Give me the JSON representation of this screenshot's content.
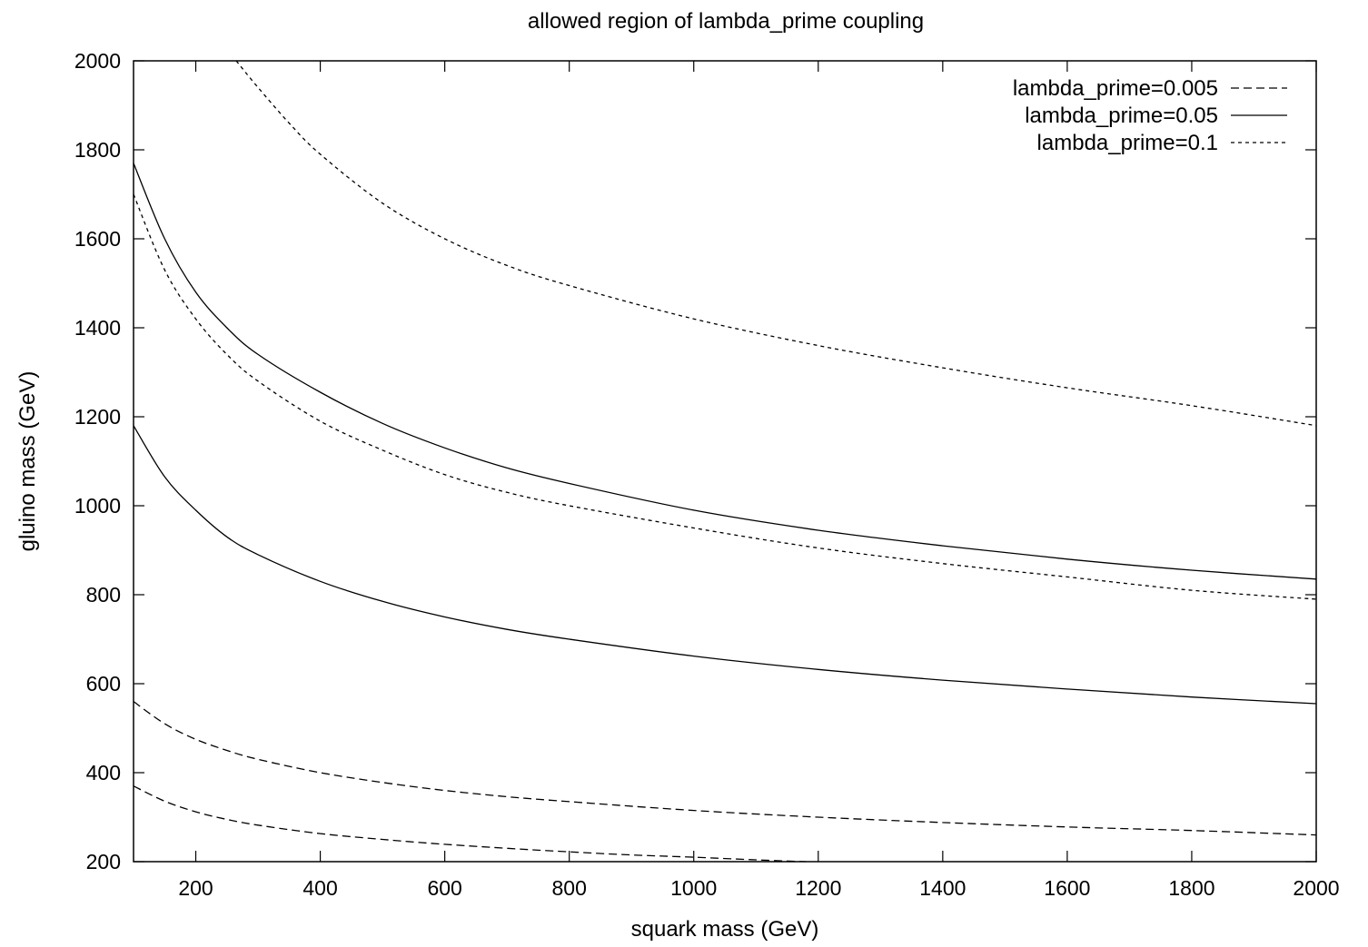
{
  "chart_data": {
    "type": "line",
    "title": "allowed region of lambda_prime coupling",
    "xlabel": "squark mass (GeV)",
    "ylabel": "gluino mass (GeV)",
    "xlim": [
      100,
      2000
    ],
    "ylim": [
      200,
      2000
    ],
    "xticks": [
      200,
      400,
      600,
      800,
      1000,
      1200,
      1400,
      1600,
      1800,
      2000
    ],
    "yticks": [
      200,
      400,
      600,
      800,
      1000,
      1200,
      1400,
      1600,
      1800,
      2000
    ],
    "grid": false,
    "legend_position": "top-right",
    "series": [
      {
        "name": "lambda_prime=0.005",
        "style": "dashed",
        "curves": [
          {
            "x": [
              100,
              150,
              200,
              250,
              300,
              400,
              500,
              600,
              700,
              800,
              1000,
              1200,
              1400,
              1600,
              1800,
              2000
            ],
            "y": [
              560,
              510,
              475,
              450,
              430,
              400,
              378,
              360,
              346,
              335,
              315,
              300,
              288,
              278,
              270,
              260
            ]
          },
          {
            "x": [
              100,
              150,
              200,
              250,
              300,
              400,
              500,
              600,
              700,
              800,
              900,
              1000,
              1100,
              1180
            ],
            "y": [
              370,
              336,
              312,
              295,
              282,
              263,
              250,
              239,
              230,
              222,
              215,
              210,
              204,
              200
            ]
          }
        ]
      },
      {
        "name": "lambda_prime=0.05",
        "style": "solid",
        "curves": [
          {
            "x": [
              100,
              150,
              200,
              250,
              300,
              400,
              500,
              600,
              700,
              800,
              1000,
              1200,
              1400,
              1600,
              1800,
              2000
            ],
            "y": [
              1770,
              1600,
              1480,
              1400,
              1340,
              1255,
              1185,
              1130,
              1085,
              1050,
              990,
              945,
              910,
              880,
              855,
              835
            ]
          },
          {
            "x": [
              100,
              150,
              200,
              250,
              300,
              400,
              500,
              600,
              700,
              800,
              1000,
              1200,
              1400,
              1600,
              1800,
              2000
            ],
            "y": [
              1180,
              1065,
              990,
              930,
              890,
              830,
              785,
              750,
              722,
              700,
              662,
              632,
              608,
              588,
              570,
              555
            ]
          }
        ]
      },
      {
        "name": "lambda_prime=0.1",
        "style": "dotted",
        "curves": [
          {
            "x": [
              265,
              300,
              350,
              400,
              500,
              600,
              700,
              800,
              1000,
              1200,
              1400,
              1600,
              1800,
              2000
            ],
            "y": [
              2000,
              1940,
              1860,
              1790,
              1680,
              1600,
              1540,
              1495,
              1420,
              1360,
              1310,
              1265,
              1225,
              1180
            ]
          },
          {
            "x": [
              100,
              150,
              200,
              250,
              300,
              400,
              500,
              600,
              700,
              800,
              1000,
              1200,
              1400,
              1600,
              1800,
              2000
            ],
            "y": [
              1700,
              1530,
              1420,
              1340,
              1280,
              1190,
              1125,
              1070,
              1030,
              1000,
              950,
              905,
              870,
              840,
              810,
              790
            ]
          }
        ]
      }
    ]
  }
}
